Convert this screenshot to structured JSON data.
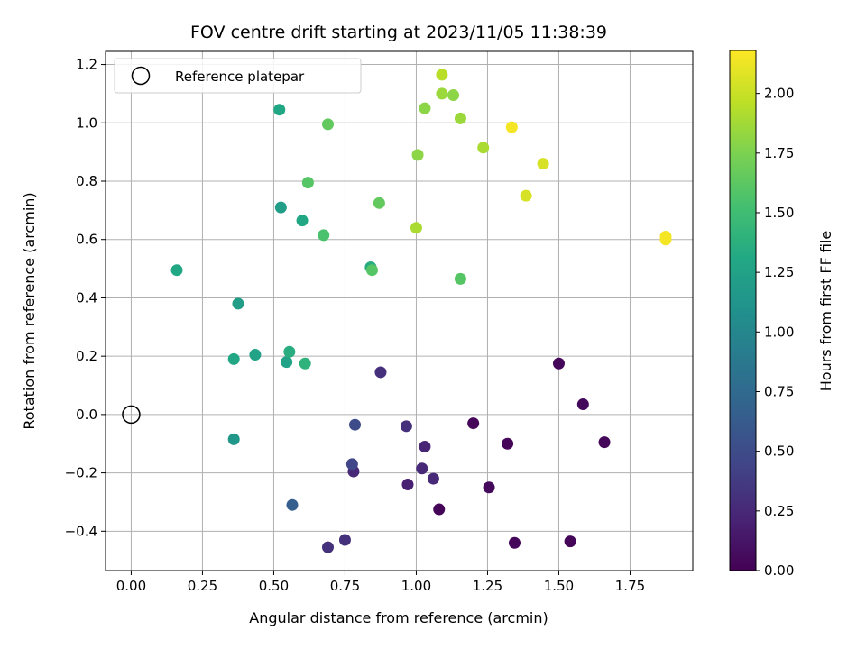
{
  "chart_data": {
    "type": "scatter",
    "title": "FOV centre drift starting at 2023/11/05 11:38:39",
    "xlabel": "Angular distance from reference (arcmin)",
    "ylabel": "Rotation from reference (arcmin)",
    "xlim": [
      -0.09,
      1.97
    ],
    "ylim": [
      -0.535,
      1.245
    ],
    "xticks": [
      "0.00",
      "0.25",
      "0.50",
      "0.75",
      "1.00",
      "1.25",
      "1.50",
      "1.75"
    ],
    "yticks": [
      "−0.4",
      "−0.2",
      "0.0",
      "0.2",
      "0.4",
      "0.6",
      "0.8",
      "1.0",
      "1.2"
    ],
    "grid": true,
    "legend": {
      "placement": "top-left",
      "entries": [
        "Reference platepar"
      ]
    },
    "colorbar": {
      "label": "Hours from first FF file",
      "range": [
        0,
        2.18
      ],
      "ticks": [
        "0.00",
        "0.25",
        "0.50",
        "0.75",
        "1.00",
        "1.25",
        "1.50",
        "1.75",
        "2.00"
      ],
      "colormap": "viridis"
    },
    "reference": {
      "x": 0.0,
      "y": 0.0
    },
    "points": [
      {
        "x": 1.08,
        "y": -0.325,
        "c": 0.02
      },
      {
        "x": 1.2,
        "y": -0.03,
        "c": 0.03
      },
      {
        "x": 1.255,
        "y": -0.25,
        "c": 0.05
      },
      {
        "x": 1.32,
        "y": -0.1,
        "c": 0.03
      },
      {
        "x": 1.345,
        "y": -0.44,
        "c": 0.04
      },
      {
        "x": 1.5,
        "y": 0.175,
        "c": 0.04
      },
      {
        "x": 1.54,
        "y": -0.435,
        "c": 0.03
      },
      {
        "x": 1.585,
        "y": 0.035,
        "c": 0.05
      },
      {
        "x": 1.66,
        "y": -0.095,
        "c": 0.04
      },
      {
        "x": 1.03,
        "y": -0.11,
        "c": 0.22
      },
      {
        "x": 1.06,
        "y": -0.22,
        "c": 0.25
      },
      {
        "x": 1.02,
        "y": -0.185,
        "c": 0.25
      },
      {
        "x": 0.97,
        "y": -0.24,
        "c": 0.2
      },
      {
        "x": 0.965,
        "y": -0.04,
        "c": 0.3
      },
      {
        "x": 0.875,
        "y": 0.145,
        "c": 0.3
      },
      {
        "x": 0.78,
        "y": -0.195,
        "c": 0.25
      },
      {
        "x": 0.69,
        "y": -0.455,
        "c": 0.3
      },
      {
        "x": 0.75,
        "y": -0.43,
        "c": 0.3
      },
      {
        "x": 0.775,
        "y": -0.17,
        "c": 0.45
      },
      {
        "x": 0.785,
        "y": -0.035,
        "c": 0.5
      },
      {
        "x": 0.565,
        "y": -0.31,
        "c": 0.65
      },
      {
        "x": 0.36,
        "y": -0.085,
        "c": 1.15
      },
      {
        "x": 0.36,
        "y": 0.19,
        "c": 1.3
      },
      {
        "x": 0.435,
        "y": 0.205,
        "c": 1.25
      },
      {
        "x": 0.545,
        "y": 0.18,
        "c": 1.25
      },
      {
        "x": 0.555,
        "y": 0.215,
        "c": 1.35
      },
      {
        "x": 0.61,
        "y": 0.175,
        "c": 1.4
      },
      {
        "x": 0.375,
        "y": 0.38,
        "c": 1.2
      },
      {
        "x": 0.16,
        "y": 0.495,
        "c": 1.3
      },
      {
        "x": 0.525,
        "y": 0.71,
        "c": 1.2
      },
      {
        "x": 0.6,
        "y": 0.665,
        "c": 1.3
      },
      {
        "x": 0.52,
        "y": 1.045,
        "c": 1.3
      },
      {
        "x": 0.675,
        "y": 0.615,
        "c": 1.55
      },
      {
        "x": 0.62,
        "y": 0.795,
        "c": 1.6
      },
      {
        "x": 0.69,
        "y": 0.995,
        "c": 1.65
      },
      {
        "x": 0.84,
        "y": 0.505,
        "c": 1.35
      },
      {
        "x": 0.845,
        "y": 0.495,
        "c": 1.6
      },
      {
        "x": 0.87,
        "y": 0.725,
        "c": 1.65
      },
      {
        "x": 1.155,
        "y": 0.465,
        "c": 1.6
      },
      {
        "x": 1.0,
        "y": 0.64,
        "c": 1.9
      },
      {
        "x": 1.005,
        "y": 0.89,
        "c": 1.8
      },
      {
        "x": 1.03,
        "y": 1.05,
        "c": 1.8
      },
      {
        "x": 1.09,
        "y": 1.165,
        "c": 1.95
      },
      {
        "x": 1.09,
        "y": 1.1,
        "c": 1.85
      },
      {
        "x": 1.13,
        "y": 1.095,
        "c": 1.8
      },
      {
        "x": 1.155,
        "y": 1.015,
        "c": 1.85
      },
      {
        "x": 1.235,
        "y": 0.915,
        "c": 1.9
      },
      {
        "x": 1.335,
        "y": 0.985,
        "c": 2.15
      },
      {
        "x": 1.385,
        "y": 0.75,
        "c": 2.05
      },
      {
        "x": 1.445,
        "y": 0.86,
        "c": 2.05
      },
      {
        "x": 1.875,
        "y": 0.6,
        "c": 2.15
      },
      {
        "x": 1.875,
        "y": 0.61,
        "c": 2.15
      }
    ]
  }
}
